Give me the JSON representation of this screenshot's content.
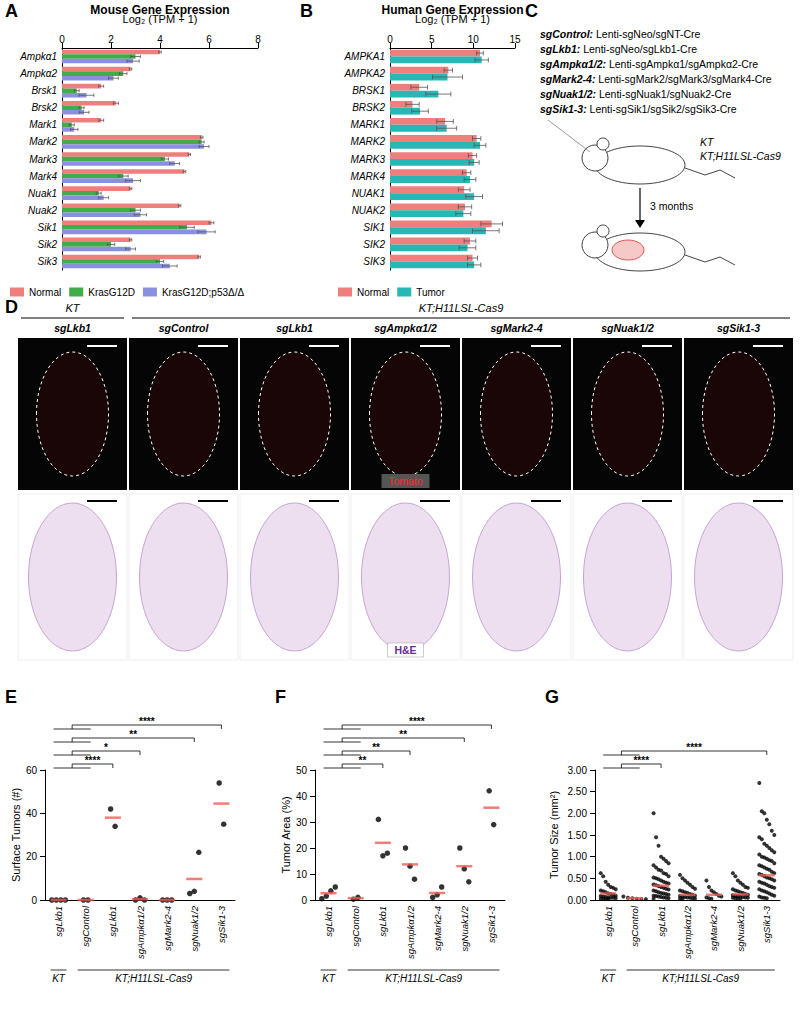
{
  "chart_data": [
    {
      "panel": "A",
      "type": "bar",
      "orientation": "horizontal",
      "title": "Mouse Gene Expression",
      "x_label": "Log₂ (TPM + 1)",
      "categories": [
        "Ampkα1",
        "Ampkα2",
        "Brsk1",
        "Brsk2",
        "Mark1",
        "Mark2",
        "Mark3",
        "Mark4",
        "Nuak1",
        "Nuak2",
        "Sik1",
        "Sik2",
        "Sik3"
      ],
      "series": [
        {
          "name": "Normal",
          "color": "#ee7f7d",
          "values": [
            4.0,
            2.8,
            1.6,
            2.2,
            1.6,
            5.7,
            5.2,
            5.0,
            2.8,
            4.8,
            6.1,
            2.8,
            5.6
          ],
          "errors": [
            0.05,
            0.05,
            0.1,
            0.1,
            0.1,
            0.05,
            0.05,
            0.05,
            0.05,
            0.05,
            0.1,
            0.05,
            0.05
          ]
        },
        {
          "name": "KrasG12D",
          "color": "#3fae49",
          "values": [
            3.0,
            2.5,
            0.6,
            0.8,
            0.4,
            5.7,
            4.2,
            2.5,
            1.5,
            3.0,
            5.1,
            2.0,
            4.0
          ],
          "errors": [
            0.2,
            0.15,
            0.1,
            0.1,
            0.1,
            0.1,
            0.15,
            0.2,
            0.1,
            0.2,
            0.3,
            0.15,
            0.15
          ]
        },
        {
          "name": "KrasG12D;p53Δ/Δ",
          "color": "#8b8fe0",
          "values": [
            2.9,
            2.1,
            1.0,
            0.9,
            0.5,
            5.8,
            4.6,
            2.9,
            1.7,
            3.2,
            5.9,
            2.8,
            4.4
          ],
          "errors": [
            0.25,
            0.2,
            0.3,
            0.2,
            0.15,
            0.2,
            0.2,
            0.3,
            0.2,
            0.25,
            0.35,
            0.2,
            0.3
          ]
        }
      ],
      "xlim": [
        0,
        8
      ],
      "xticks": [
        0,
        2,
        4,
        6,
        8
      ],
      "grid": false,
      "legend": "bottom"
    },
    {
      "panel": "B",
      "type": "bar",
      "orientation": "horizontal",
      "title": "Human Gene Expression",
      "x_label": "Log₂ (TPM + 1)",
      "categories": [
        "AMPKA1",
        "AMPKA2",
        "BRSK1",
        "BRSK2",
        "MARK1",
        "MARK2",
        "MARK3",
        "MARK4",
        "NUAK1",
        "NUAK2",
        "SIK1",
        "SIK2",
        "SIK3"
      ],
      "series": [
        {
          "name": "Normal",
          "color": "#ee7f7d",
          "values": [
            10.8,
            7.0,
            3.5,
            2.7,
            6.6,
            10.4,
            9.9,
            9.2,
            8.9,
            9.0,
            12.2,
            9.6,
            9.9
          ],
          "errors": [
            0.4,
            0.5,
            1.0,
            0.8,
            1.0,
            0.5,
            0.5,
            0.5,
            0.7,
            0.8,
            1.3,
            0.7,
            0.6
          ]
        },
        {
          "name": "Tumor",
          "color": "#27b7b4",
          "values": [
            11.0,
            6.9,
            5.8,
            3.6,
            6.8,
            10.8,
            10.1,
            9.6,
            10.1,
            8.8,
            11.5,
            9.3,
            10.1
          ],
          "errors": [
            0.8,
            1.8,
            1.5,
            1.0,
            1.2,
            0.7,
            0.6,
            0.7,
            1.0,
            0.9,
            1.6,
            1.0,
            0.8
          ]
        }
      ],
      "xlim": [
        0,
        15
      ],
      "xticks": [
        0,
        5,
        10,
        15
      ],
      "grid": false,
      "legend": "bottom"
    },
    {
      "panel": "E",
      "type": "scatter",
      "y_label": "Surface Tumors (#)",
      "categories": [
        "sgLkb1",
        "sgControl",
        "sgLkb1",
        "sgAmpkα1/2",
        "sgMark2-4",
        "sgNuak1/2",
        "sgSik1-3"
      ],
      "groups": [
        {
          "label": "KT",
          "categories": [
            0
          ]
        },
        {
          "label": "KT;H11LSL-Cas9",
          "categories": [
            1,
            2,
            3,
            4,
            5,
            6
          ]
        }
      ],
      "series": [
        {
          "type": "scatter",
          "color": "#000000",
          "marker": "circle",
          "values": [
            [
              0,
              0,
              0,
              0
            ],
            [
              0,
              0
            ],
            [
              42,
              34
            ],
            [
              0,
              1,
              0
            ],
            [
              0,
              0,
              0
            ],
            [
              3,
              4,
              22
            ],
            [
              54,
              35
            ]
          ]
        },
        {
          "type": "mean",
          "color": "#ee5c55",
          "marker": "dash",
          "values": [
            0,
            0,
            38,
            0.33,
            0,
            9.7,
            44.5
          ]
        }
      ],
      "comparisons": [
        {
          "from": [
            0,
            1
          ],
          "to": 2,
          "label": "****"
        },
        {
          "from": [
            0,
            1
          ],
          "to": 3,
          "label": "*"
        },
        {
          "from": [
            0,
            1
          ],
          "to": 5,
          "label": "**"
        },
        {
          "from": [
            0,
            1
          ],
          "to": 6,
          "label": "****"
        }
      ],
      "ylim": [
        0,
        60
      ],
      "yticks": [
        0,
        20,
        40,
        60
      ],
      "grid": false
    },
    {
      "panel": "F",
      "type": "scatter",
      "y_label": "Tumor Area (%)",
      "categories": [
        "sgLkb1",
        "sgControl",
        "sgLkb1",
        "sgAmpkα1/2",
        "sgMark2-4",
        "sgNuak1/2",
        "sgSik1-3"
      ],
      "groups": [
        {
          "label": "KT",
          "categories": [
            0
          ]
        },
        {
          "label": "KT;H11LSL-Cas9",
          "categories": [
            1,
            2,
            3,
            4,
            5,
            6
          ]
        }
      ],
      "series": [
        {
          "type": "scatter",
          "color": "#000000",
          "marker": "circle",
          "values": [
            [
              0.5,
              1.5,
              3.5,
              5
            ],
            [
              0.3,
              1
            ],
            [
              31,
              17,
              18
            ],
            [
              20,
              13,
              8
            ],
            [
              1,
              2,
              5
            ],
            [
              20,
              12,
              7
            ],
            [
              42,
              29
            ]
          ]
        },
        {
          "type": "mean",
          "color": "#ee5c55",
          "marker": "dash",
          "values": [
            2.6,
            0.7,
            22,
            13.7,
            2.7,
            13,
            35.5
          ]
        }
      ],
      "comparisons": [
        {
          "from": [
            0,
            1
          ],
          "to": 2,
          "label": "**"
        },
        {
          "from": [
            0,
            1
          ],
          "to": 3,
          "label": "**"
        },
        {
          "from": [
            0,
            1
          ],
          "to": 5,
          "label": "**"
        },
        {
          "from": [
            0,
            1
          ],
          "to": 6,
          "label": "****"
        }
      ],
      "ylim": [
        0,
        50
      ],
      "yticks": [
        0,
        10,
        20,
        30,
        40,
        50
      ],
      "grid": false
    },
    {
      "panel": "G",
      "type": "scatter",
      "y_label": "Tumor Size (mm²)",
      "categories": [
        "sgLkb1",
        "sgControl",
        "sgLkb1",
        "sgAmpkα1/2",
        "sgMark2-4",
        "sgNuak1/2",
        "sgSik1-3"
      ],
      "groups": [
        {
          "label": "KT",
          "categories": [
            0
          ]
        },
        {
          "label": "KT;H11LSL-Cas9",
          "categories": [
            1,
            2,
            3,
            4,
            5,
            6
          ]
        }
      ],
      "series": [
        {
          "type": "scatter",
          "color": "#000000",
          "marker": "circle",
          "values": [
            [
              0.62,
              0.55,
              0.42,
              0.35,
              0.3,
              0.28,
              0.25,
              0.22,
              0.2,
              0.18,
              0.15,
              0.14,
              0.12,
              0.1,
              0.09,
              0.08,
              0.07,
              0.06,
              0.05,
              0.05,
              0.04,
              0.03,
              0.03,
              0.02,
              0.02
            ],
            [
              0.08,
              0.05,
              0.04,
              0.03,
              0.02,
              0.02
            ],
            [
              2.0,
              1.45,
              1.25,
              1.0,
              0.95,
              0.9,
              0.85,
              0.8,
              0.75,
              0.7,
              0.68,
              0.62,
              0.6,
              0.55,
              0.52,
              0.5,
              0.48,
              0.45,
              0.42,
              0.4,
              0.38,
              0.36,
              0.34,
              0.32,
              0.3,
              0.28,
              0.26,
              0.24,
              0.22,
              0.2,
              0.18,
              0.16,
              0.15,
              0.14,
              0.12,
              0.1,
              0.09,
              0.08,
              0.07,
              0.06,
              0.05,
              0.04,
              0.03
            ],
            [
              0.58,
              0.5,
              0.45,
              0.4,
              0.35,
              0.3,
              0.26,
              0.22,
              0.2,
              0.18,
              0.16,
              0.14,
              0.12,
              0.1,
              0.09,
              0.08,
              0.07,
              0.06,
              0.05,
              0.04,
              0.03,
              0.03,
              0.02
            ],
            [
              0.45,
              0.3,
              0.22,
              0.18,
              0.14,
              0.1,
              0.08,
              0.06,
              0.04,
              0.03
            ],
            [
              0.62,
              0.55,
              0.45,
              0.4,
              0.35,
              0.3,
              0.28,
              0.25,
              0.22,
              0.2,
              0.18,
              0.16,
              0.14,
              0.12,
              0.11,
              0.1,
              0.09,
              0.08,
              0.07,
              0.06,
              0.05,
              0.05,
              0.04,
              0.03,
              0.02
            ],
            [
              2.7,
              2.05,
              2.0,
              1.85,
              1.75,
              1.6,
              1.5,
              1.45,
              1.4,
              1.3,
              1.25,
              1.2,
              1.15,
              1.1,
              1.05,
              1.0,
              0.98,
              0.95,
              0.92,
              0.9,
              0.85,
              0.8,
              0.78,
              0.75,
              0.72,
              0.7,
              0.65,
              0.62,
              0.6,
              0.58,
              0.55,
              0.52,
              0.5,
              0.48,
              0.45,
              0.42,
              0.4,
              0.38,
              0.35,
              0.32,
              0.3,
              0.28,
              0.25,
              0.22,
              0.2,
              0.18,
              0.15,
              0.12,
              0.1,
              0.08,
              0.06,
              0.05,
              0.04
            ]
          ]
        },
        {
          "type": "mean",
          "color": "#ee5c55",
          "marker": "dash",
          "values": [
            0.15,
            0.04,
            0.33,
            0.12,
            0.12,
            0.13,
            0.57
          ]
        }
      ],
      "comparisons": [
        {
          "from": [
            0,
            1
          ],
          "to": 2,
          "label": "****"
        },
        {
          "from": [
            0,
            1
          ],
          "to": 6,
          "label": "****"
        }
      ],
      "ylim": [
        0,
        3
      ],
      "yticks": [
        {
          "value": 0,
          "label": "0.00"
        },
        {
          "value": 0.5,
          "label": "0.50"
        },
        {
          "value": 1,
          "label": "1.00"
        },
        {
          "value": 1.5,
          "label": "1.50"
        },
        {
          "value": 2,
          "label": "2.00"
        },
        {
          "value": 2.5,
          "label": "2.50"
        },
        {
          "value": 3,
          "label": "3.00"
        }
      ],
      "grid": false
    }
  ],
  "panel_c": {
    "panel": "C",
    "constructs": [
      {
        "name": "sgControl:",
        "vector": "Lenti-sgNeo/sgNT-Cre"
      },
      {
        "name": "sgLkb1:",
        "vector": "Lenti-sgNeo/sgLkb1-Cre"
      },
      {
        "name": "sgAmpkα1/2:",
        "vector": "Lenti-sgAmpkα1/sgAmpkα2-Cre"
      },
      {
        "name": "sgMark2-4:",
        "vector": "Lenti-sgMark2/sgMark3/sgMark4-Cre"
      },
      {
        "name": "sgNuak1/2:",
        "vector": "Lenti-sgNuak1/sgNuak2-Cre"
      },
      {
        "name": "sgSik1-3:",
        "vector": "Lenti-sgSik1/sgSik2/sgSik3-Cre"
      }
    ],
    "mouse_labels": [
      "KT",
      "KT;H11LSL-Cas9"
    ],
    "time": "3 months"
  },
  "panel_d": {
    "panel": "D",
    "groups": [
      {
        "label": "KT",
        "columns": [
          0
        ]
      },
      {
        "label": "KT;H11LSL-Cas9",
        "columns": [
          1,
          2,
          3,
          4,
          5,
          6
        ]
      }
    ],
    "columns": [
      "sgLkb1",
      "sgControl",
      "sgLkb1",
      "sgAmpkα1/2",
      "sgMark2-4",
      "sgNuak1/2",
      "sgSik1-3"
    ],
    "row_labels": [
      "Tomato",
      "H&E"
    ]
  }
}
